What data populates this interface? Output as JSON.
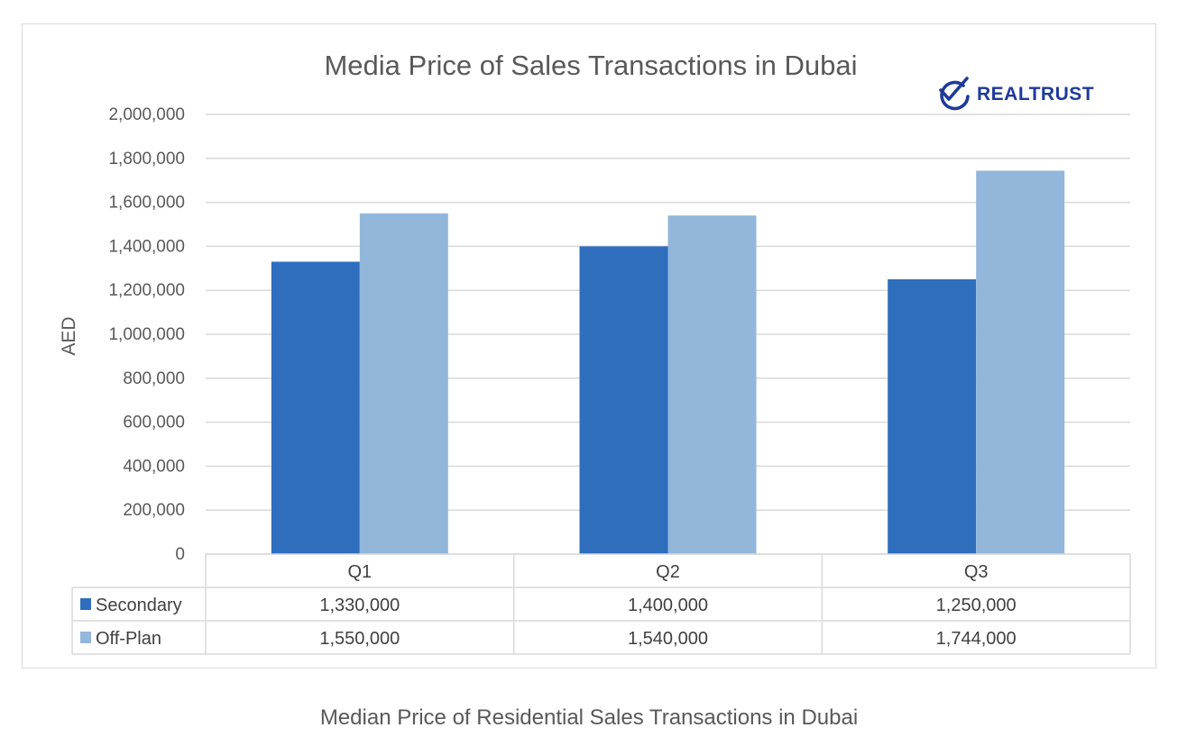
{
  "chart_data": {
    "type": "bar",
    "title": "Media Price of Sales Transactions in Dubai",
    "ylabel": "AED",
    "xlabel": "",
    "categories": [
      "Q1",
      "Q2",
      "Q3"
    ],
    "series": [
      {
        "name": "Secondary",
        "values": [
          1330000,
          1400000,
          1250000
        ],
        "color": "#2e6ebd"
      },
      {
        "name": "Off-Plan",
        "values": [
          1550000,
          1540000,
          1744000
        ],
        "color": "#92b7db"
      }
    ],
    "ylim": [
      0,
      2000000
    ],
    "yticks": [
      0,
      200000,
      400000,
      600000,
      800000,
      1000000,
      1200000,
      1400000,
      1600000,
      1800000,
      2000000
    ],
    "ytick_labels": [
      "0",
      "200,000",
      "400,000",
      "600,000",
      "800,000",
      "1,000,000",
      "1,200,000",
      "1,400,000",
      "1,600,000",
      "1,800,000",
      "2,000,000"
    ],
    "grid": true,
    "data_table": {
      "rows": [
        {
          "series": "Secondary",
          "label": "Secondary",
          "values": [
            "1,330,000",
            "1,400,000",
            "1,250,000"
          ]
        },
        {
          "series": "Off-Plan",
          "label": "Off-Plan",
          "values": [
            "1,550,000",
            "1,540,000",
            "1,744,000"
          ]
        }
      ]
    }
  },
  "brand": {
    "name": "REALTRUST",
    "color": "#1e3a9a"
  },
  "caption": "Median Price of Residential Sales Transactions in Dubai",
  "colors": {
    "grid": "#d9d9d9",
    "text": "#595959"
  }
}
